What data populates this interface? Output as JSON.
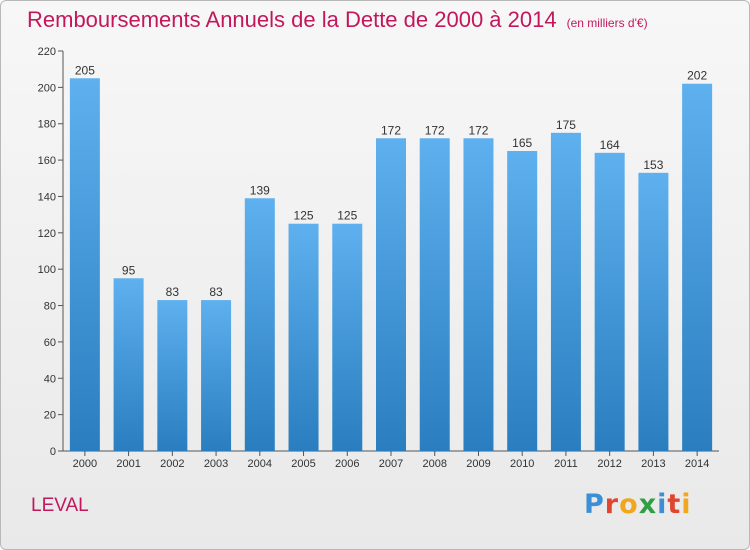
{
  "title": "Remboursements Annuels de la Dette de 2000 à 2014",
  "unit_note": "(en milliers d'€)",
  "commune": "LEVAL",
  "logo": {
    "text": "Proxiti",
    "letters": [
      {
        "char": "P",
        "color": "#3a8fd6"
      },
      {
        "char": "r",
        "color": "#e0462f"
      },
      {
        "char": "o",
        "color": "#f2a61c"
      },
      {
        "char": "x",
        "color": "#2f9e44"
      },
      {
        "char": "i",
        "color": "#3a8fd6"
      },
      {
        "char": "t",
        "color": "#e0462f"
      },
      {
        "char": "i",
        "color": "#f2a61c"
      }
    ]
  },
  "colors": {
    "title": "#c2185b",
    "bar_top": "#5eb0ee",
    "bar_bottom": "#2a7ebf"
  },
  "chart_data": {
    "type": "bar",
    "title": "Remboursements Annuels de la Dette de 2000 à 2014",
    "subtitle": "(en milliers d'€)",
    "xlabel": "",
    "ylabel": "",
    "categories": [
      "2000",
      "2001",
      "2002",
      "2003",
      "2004",
      "2005",
      "2006",
      "2007",
      "2008",
      "2009",
      "2010",
      "2011",
      "2012",
      "2013",
      "2014"
    ],
    "values": [
      205,
      95,
      83,
      83,
      139,
      125,
      125,
      172,
      172,
      172,
      165,
      175,
      164,
      153,
      202
    ],
    "ylim": [
      0,
      220
    ],
    "yticks": [
      0,
      20,
      40,
      60,
      80,
      100,
      120,
      140,
      160,
      180,
      200,
      220
    ],
    "grid": false,
    "legend": "none",
    "data_labels": true
  }
}
